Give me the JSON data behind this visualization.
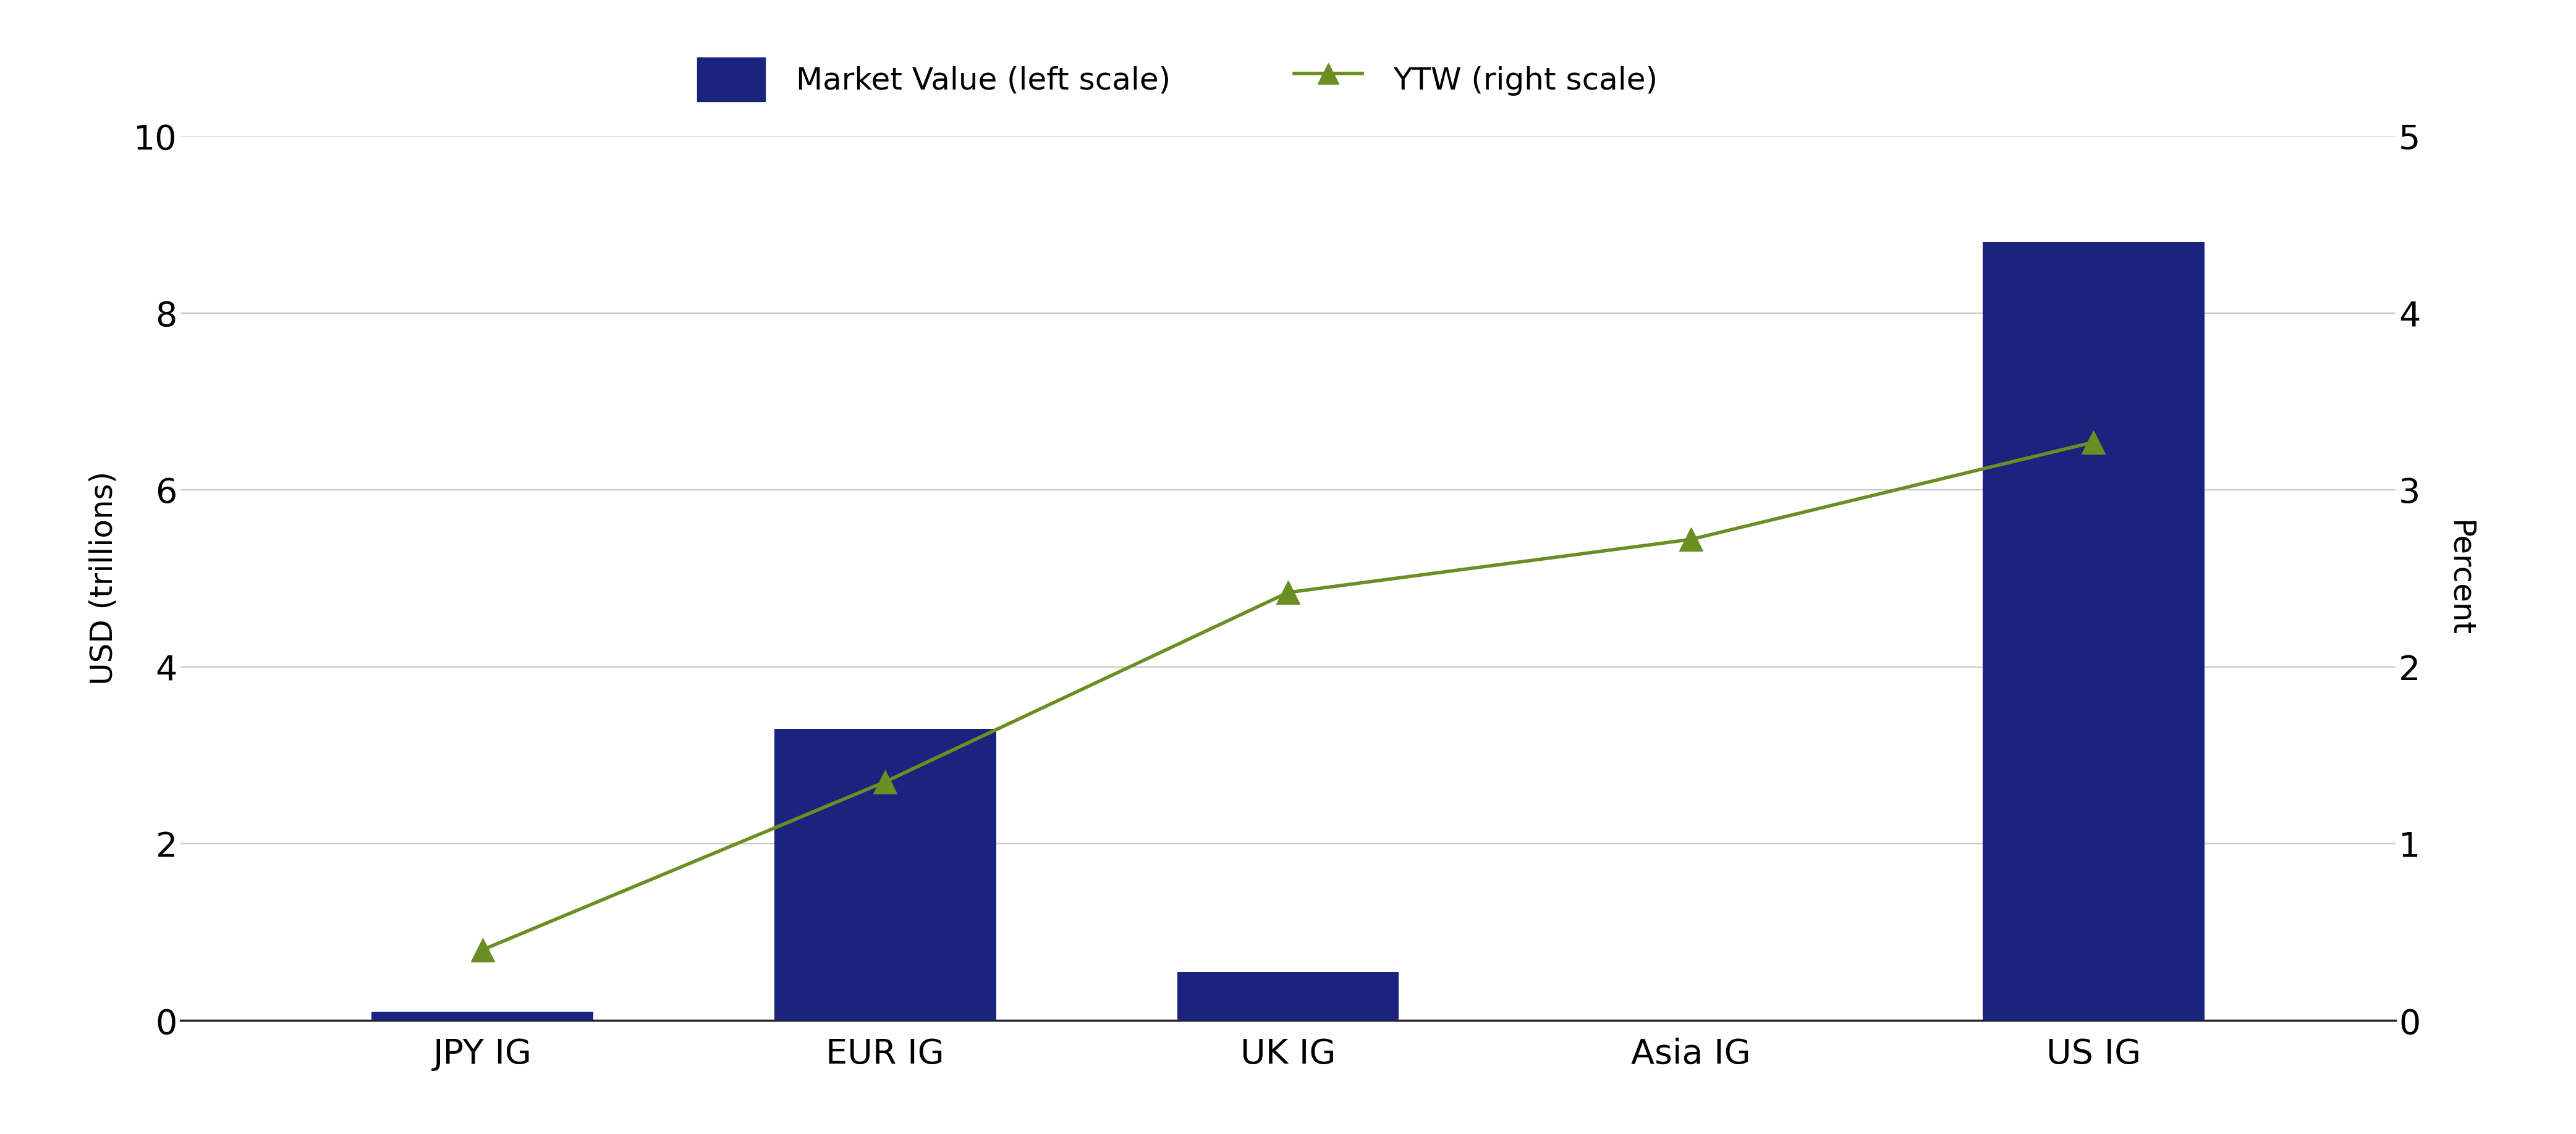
{
  "categories": [
    "JPY IG",
    "EUR IG",
    "UK IG",
    "Asia IG",
    "US IG"
  ],
  "market_values": [
    0.1,
    3.3,
    0.55,
    0.0,
    8.8
  ],
  "ytw_values": [
    0.4,
    1.35,
    2.42,
    2.72,
    3.27
  ],
  "bar_color": "#1a237e",
  "line_color": "#6b8e23",
  "ylabel_left": "USD (trillions)",
  "ylabel_right": "Percent",
  "ylim_left": [
    0,
    10
  ],
  "ylim_right": [
    0,
    5
  ],
  "yticks_left": [
    0,
    2,
    4,
    6,
    8,
    10
  ],
  "yticks_right": [
    0,
    1,
    2,
    3,
    4,
    5
  ],
  "legend_bar_label": "Market Value (left scale)",
  "legend_line_label": "YTW (right scale)",
  "background_color": "#ffffff",
  "grid_color": "#c8c8c8",
  "bar_width": 0.55,
  "axis_label_fontsize": 36,
  "tick_fontsize": 40,
  "legend_fontsize": 36
}
